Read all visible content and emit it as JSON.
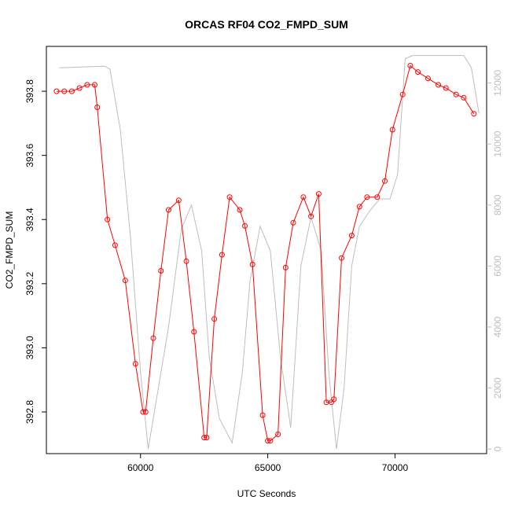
{
  "chart_data": {
    "type": "line",
    "title": "ORCAS RF04 CO2_FMPD_SUM",
    "xlabel": "UTC Seconds",
    "ylabel": "CO2_FMPD_SUM",
    "xlim": [
      56300,
      73600
    ],
    "ylim": [
      392.67,
      393.94
    ],
    "y2lim": [
      -150,
      13200
    ],
    "x_ticks": [
      60000,
      65000,
      70000
    ],
    "x_tick_labels": [
      "60000",
      "65000",
      "70000"
    ],
    "y_ticks": [
      392.8,
      393.0,
      393.2,
      393.4,
      393.6,
      393.8
    ],
    "y_tick_labels": [
      "392.8",
      "393.0",
      "393.2",
      "393.4",
      "393.6",
      "393.8"
    ],
    "y2_ticks": [
      0,
      2000,
      4000,
      6000,
      8000,
      10000,
      12000
    ],
    "y2_tick_labels": [
      "0",
      "2000",
      "4000",
      "6000",
      "8000",
      "10000",
      "12000"
    ],
    "grid": false,
    "legend": "none",
    "colors": {
      "co2": "#ff0000",
      "secondary": "#bebebe",
      "axes": "#000000"
    },
    "series": [
      {
        "axis": "left",
        "x": [
          56700,
          57000,
          57300,
          57600,
          57900,
          58200,
          58300,
          58700,
          59000,
          59400,
          59800,
          60100,
          60200,
          60500,
          60800,
          61100,
          61500,
          61800,
          62100,
          62500,
          62600,
          62900,
          63200,
          63500,
          63900,
          64100,
          64400,
          64800,
          65000,
          65100,
          65400,
          65700,
          66000,
          66400,
          66700,
          67000,
          67300,
          67500,
          67600,
          67900,
          68300,
          68600,
          68900,
          69300,
          69600,
          69900,
          70300,
          70600,
          70900,
          71300,
          71700,
          72000,
          72400,
          72700,
          73100
        ],
        "values": [
          393.8,
          393.8,
          393.8,
          393.81,
          393.82,
          393.82,
          393.75,
          393.4,
          393.32,
          393.21,
          392.95,
          392.8,
          392.8,
          393.03,
          393.24,
          393.43,
          393.46,
          393.27,
          393.05,
          392.72,
          392.72,
          393.09,
          393.29,
          393.47,
          393.43,
          393.38,
          393.26,
          392.79,
          392.71,
          392.71,
          392.73,
          393.25,
          393.39,
          393.47,
          393.41,
          393.48,
          392.83,
          392.83,
          392.84,
          393.28,
          393.35,
          393.44,
          393.47,
          393.47,
          393.52,
          393.68,
          393.79,
          393.88,
          393.86,
          393.84,
          393.82,
          393.81,
          393.79,
          393.78,
          393.73
        ]
      },
      {
        "axis": "right",
        "x": [
          56800,
          58600,
          58800,
          59200,
          59600,
          60000,
          60300,
          60600,
          61100,
          61600,
          62000,
          62400,
          62700,
          63100,
          63600,
          64000,
          64300,
          64700,
          65100,
          65500,
          65900,
          66300,
          66700,
          67100,
          67400,
          67700,
          68000,
          68300,
          68600,
          69000,
          69400,
          69800,
          70100,
          70400,
          70700,
          71100,
          71600,
          72000,
          72400,
          72700,
          73000,
          73300
        ],
        "values": [
          12500,
          12550,
          12450,
          10500,
          7000,
          2500,
          0,
          1500,
          4000,
          7200,
          8000,
          6500,
          3000,
          1000,
          200,
          2500,
          5500,
          7300,
          6500,
          3000,
          700,
          6000,
          7600,
          6500,
          2500,
          0,
          2000,
          6000,
          7300,
          7800,
          8200,
          8200,
          9000,
          12800,
          12900,
          12900,
          12900,
          12900,
          12900,
          12900,
          12500,
          11000
        ]
      }
    ]
  }
}
